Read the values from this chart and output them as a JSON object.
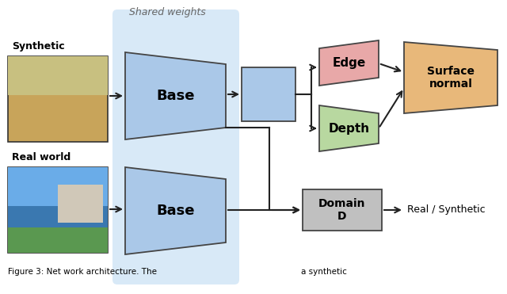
{
  "fig_width": 6.4,
  "fig_height": 3.71,
  "bg_color": "#ffffff",
  "trap_color": "#aac8e8",
  "trap_edge_color": "#444444",
  "sw_bg_color": "#d0e8f8",
  "edge_color_fill": "#e8a8a8",
  "depth_color_fill": "#b8d8a0",
  "surface_color_fill": "#e8b87a",
  "domain_color_fill": "#c0c0c0",
  "center_rect_color": "#aac8e8",
  "arrow_color": "#222222",
  "label_color": "#000000",
  "caption_text": "Figure 3: Net work architecture. The                                                        a synthetic",
  "shared_label": "Shared weights",
  "syn_label": "Synthetic",
  "rw_label": "Real world",
  "base_label": "Base",
  "edge_label": "Edge",
  "depth_label": "Depth",
  "surface_label": "Surface\nnormal",
  "domain_label": "Domain\nD",
  "real_syn_label": "Real / Synthetic"
}
